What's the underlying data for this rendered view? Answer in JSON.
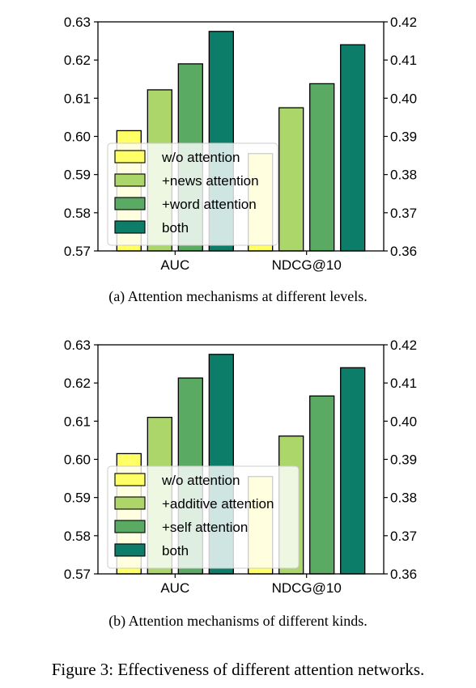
{
  "figure_caption": "Figure 3: Effectiveness of different attention networks.",
  "colors": {
    "w/o attention": "#ffff66",
    "+news attention": "#acd66a",
    "+word attention": "#5aaa64",
    "both": "#0b7d68"
  },
  "chart_data": [
    {
      "type": "bar",
      "caption": "(a)  Attention mechanisms at different levels.",
      "categories": [
        "AUC",
        "NDCG@10"
      ],
      "y_left": {
        "lim": [
          0.57,
          0.63
        ],
        "ticks": [
          "0.57",
          "0.58",
          "0.59",
          "0.60",
          "0.61",
          "0.62",
          "0.63"
        ]
      },
      "y_right": {
        "lim": [
          0.36,
          0.42
        ],
        "ticks": [
          "0.36",
          "0.37",
          "0.38",
          "0.39",
          "0.40",
          "0.41",
          "0.42"
        ]
      },
      "series": [
        {
          "name": "w/o attention",
          "color": "#ffff66",
          "values": [
            0.6015,
            0.3855
          ]
        },
        {
          "name": "+news attention",
          "color": "#acd66a",
          "values": [
            0.6122,
            0.3975
          ]
        },
        {
          "name": "+word attention",
          "color": "#5aaa64",
          "values": [
            0.619,
            0.4038
          ]
        },
        {
          "name": "both",
          "color": "#0b7d68",
          "values": [
            0.6275,
            0.414
          ]
        }
      ],
      "legend": "lower-left"
    },
    {
      "type": "bar",
      "caption": "(b)  Attention mechanisms of different kinds.",
      "categories": [
        "AUC",
        "NDCG@10"
      ],
      "y_left": {
        "lim": [
          0.57,
          0.63
        ],
        "ticks": [
          "0.57",
          "0.58",
          "0.59",
          "0.60",
          "0.61",
          "0.62",
          "0.63"
        ]
      },
      "y_right": {
        "lim": [
          0.36,
          0.42
        ],
        "ticks": [
          "0.36",
          "0.37",
          "0.38",
          "0.39",
          "0.40",
          "0.41",
          "0.42"
        ]
      },
      "series": [
        {
          "name": "w/o attention",
          "color": "#ffff66",
          "values": [
            0.6015,
            0.3855
          ]
        },
        {
          "name": "+additive attention",
          "color": "#acd66a",
          "values": [
            0.611,
            0.3961
          ]
        },
        {
          "name": "+self attention",
          "color": "#5aaa64",
          "values": [
            0.6213,
            0.4066
          ]
        },
        {
          "name": "both",
          "color": "#0b7d68",
          "values": [
            0.6275,
            0.414
          ]
        }
      ],
      "legend": "lower-left"
    }
  ]
}
